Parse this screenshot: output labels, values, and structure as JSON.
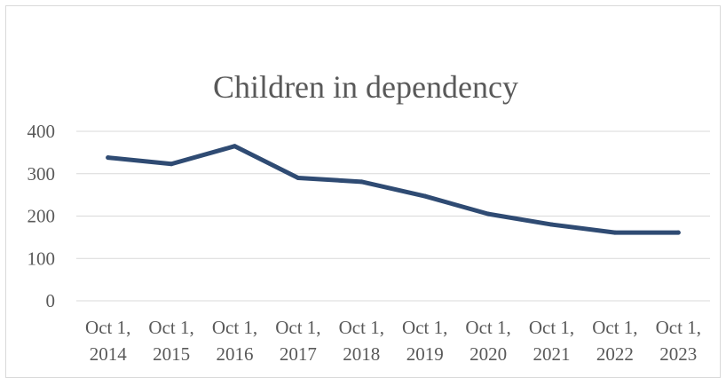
{
  "chart_data": {
    "type": "line",
    "title": "Children in dependency",
    "categories": [
      [
        "Oct 1,",
        "2014"
      ],
      [
        "Oct 1,",
        "2015"
      ],
      [
        "Oct 1,",
        "2016"
      ],
      [
        "Oct 1,",
        "2017"
      ],
      [
        "Oct 1,",
        "2018"
      ],
      [
        "Oct 1,",
        "2019"
      ],
      [
        "Oct 1,",
        "2020"
      ],
      [
        "Oct 1,",
        "2021"
      ],
      [
        "Oct 1,",
        "2022"
      ],
      [
        "Oct 1,",
        "2023"
      ]
    ],
    "series": [
      {
        "values": [
          338,
          323,
          365,
          290,
          281,
          247,
          205,
          180,
          161,
          161
        ],
        "color": "#2f4b73"
      }
    ],
    "yticks": [
      "0",
      "100",
      "200",
      "300",
      "400"
    ],
    "ylim": [
      0,
      400
    ],
    "grid": true,
    "legend": "none"
  }
}
